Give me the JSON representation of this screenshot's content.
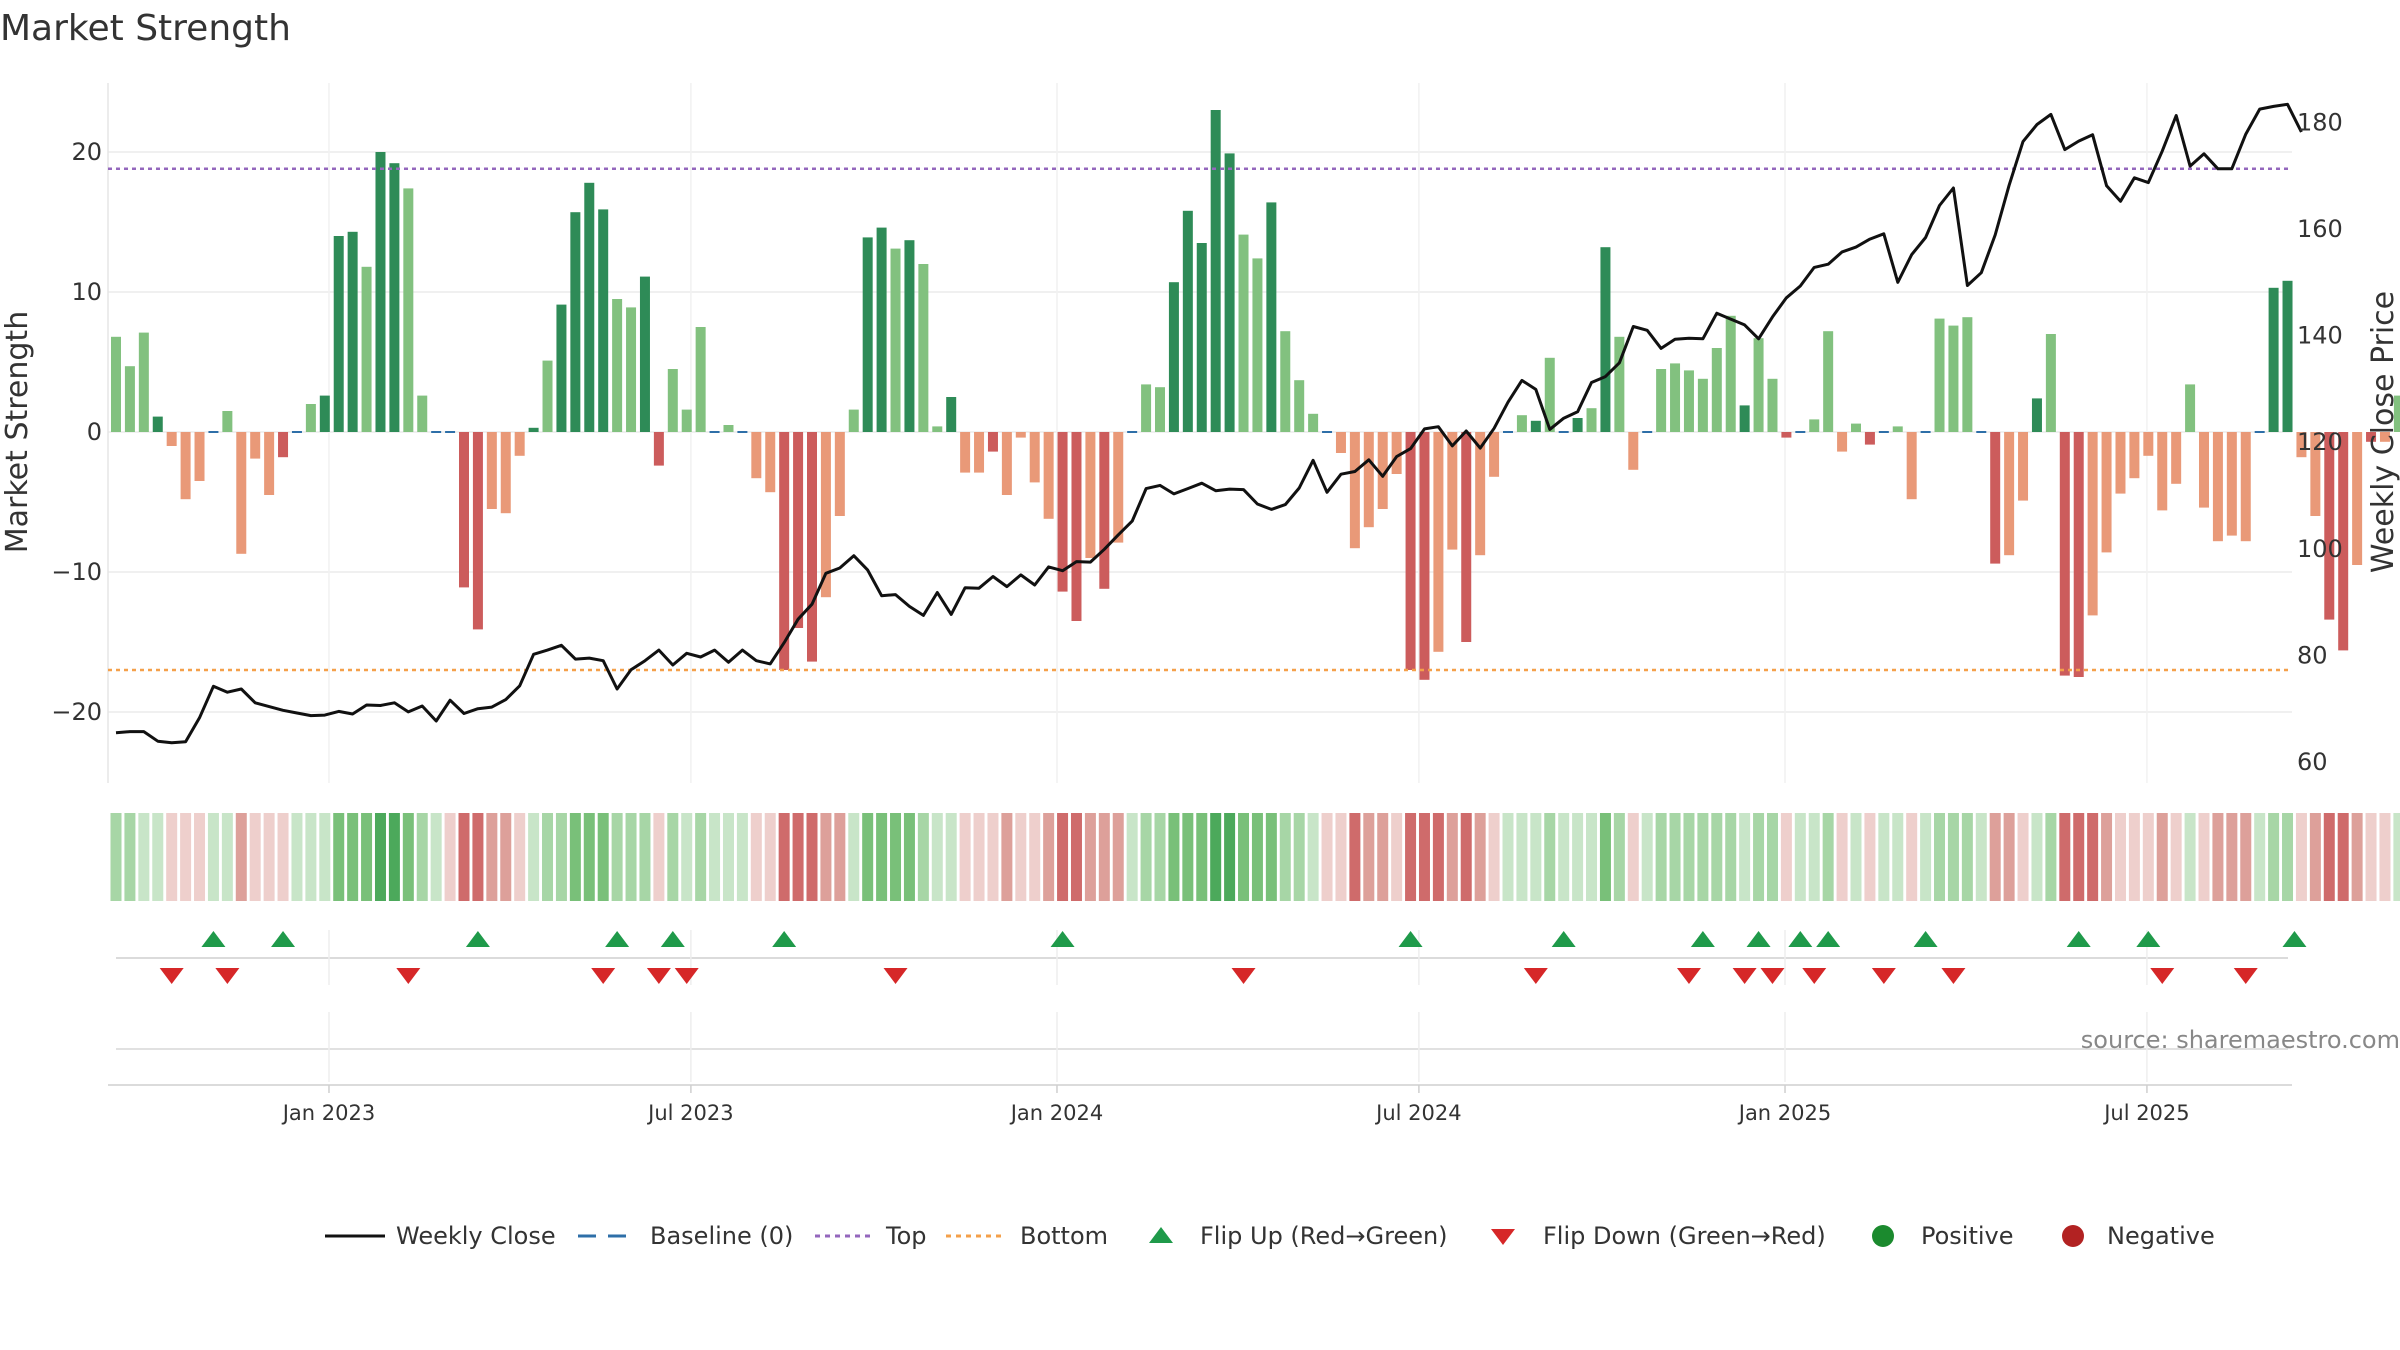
{
  "chart_data": {
    "type": "bar",
    "title": "Market Strength",
    "ylabel": "Market Strength",
    "y2label": "Weekly Close Price",
    "ylim": [
      -25,
      25
    ],
    "y2lim": [
      55,
      190
    ],
    "y_ticks": [
      "20",
      "10",
      "0",
      "−10",
      "−20"
    ],
    "y_tick_values": [
      20,
      10,
      0,
      -10,
      -20
    ],
    "y2_ticks": [
      "180",
      "160",
      "140",
      "120",
      "100",
      "80",
      "60"
    ],
    "y2_tick_values": [
      180,
      160,
      140,
      120,
      100,
      80,
      60
    ],
    "x_ticks": [
      "Jan 2023",
      "Jul 2023",
      "Jan 2024",
      "Jul 2024",
      "Jan 2025",
      "Jul 2025"
    ],
    "x_tick_weeks": [
      15.3,
      41.3,
      67.6,
      93.6,
      119.9,
      145.9
    ],
    "top_level": 18.8,
    "bottom_level": -17.0,
    "strength": [
      6.8,
      4.7,
      7.1,
      1.1,
      -1.0,
      -4.8,
      -3.5,
      0,
      1.5,
      -8.7,
      -1.9,
      -4.5,
      -1.8,
      0,
      2.0,
      2.6,
      14.0,
      14.3,
      11.8,
      20.0,
      19.2,
      17.4,
      2.6,
      0,
      0,
      -11.1,
      -14.1,
      -5.5,
      -5.8,
      -1.7,
      0.3,
      5.1,
      9.1,
      15.7,
      17.8,
      15.9,
      9.5,
      8.9,
      11.1,
      -2.4,
      4.5,
      1.6,
      7.5,
      0,
      0.5,
      0,
      -3.3,
      -4.3,
      -17.0,
      -14.0,
      -16.4,
      -11.8,
      -6.0,
      1.6,
      13.9,
      14.6,
      13.1,
      13.7,
      12.0,
      0.4,
      2.5,
      -2.9,
      -2.9,
      -1.4,
      -4.5,
      -0.4,
      -3.6,
      -6.2,
      -11.4,
      -13.5,
      -9.0,
      -11.2,
      -7.9,
      0,
      3.4,
      3.2,
      10.7,
      15.8,
      13.5,
      23.0,
      19.9,
      14.1,
      12.4,
      16.4,
      7.2,
      3.7,
      1.3,
      0,
      -1.5,
      -8.3,
      -6.8,
      -5.5,
      -3.0,
      -17.0,
      -17.7,
      -15.7,
      -8.4,
      -15.0,
      -8.8,
      -3.2,
      0,
      1.2,
      0.8,
      5.3,
      0,
      1.0,
      1.7,
      13.2,
      6.8,
      -2.7,
      0,
      4.5,
      4.9,
      4.4,
      3.8,
      6.0,
      8.3,
      1.9,
      6.7,
      3.8,
      -0.4,
      0,
      0.9,
      7.2,
      -1.4,
      0.6,
      -0.9,
      0,
      0.4,
      -4.8,
      0,
      8.1,
      7.6,
      8.2,
      0,
      -9.4,
      -8.8,
      -4.9,
      2.4,
      7.0,
      -17.4,
      -17.5,
      -13.1,
      -8.6,
      -4.4,
      -3.3,
      -1.7,
      -5.6,
      -3.7,
      3.4,
      -5.4,
      -7.8,
      -7.4,
      -7.8,
      0,
      10.3,
      10.8,
      -1.8,
      -6.0,
      -13.4,
      -15.6,
      -9.5,
      -0.7,
      -0.7,
      2.6
    ],
    "price": [
      65.5,
      65.7,
      65.7,
      63.9,
      63.6,
      63.8,
      68.3,
      74.2,
      73.1,
      73.7,
      71.1,
      70.4,
      69.7,
      69.2,
      68.7,
      68.8,
      69.5,
      69.0,
      70.7,
      70.6,
      71.1,
      69.4,
      70.5,
      67.7,
      71.6,
      69.1,
      70.0,
      70.3,
      71.7,
      74.3,
      80.2,
      81.0,
      81.9,
      79.3,
      79.5,
      79.0,
      73.7,
      77.3,
      79.0,
      81.0,
      78.2,
      80.4,
      79.7,
      81.0,
      78.7,
      81.0,
      79.0,
      78.4,
      82.4,
      86.8,
      89.6,
      95.4,
      96.4,
      98.7,
      96.0,
      91.2,
      91.4,
      89.2,
      87.5,
      91.8,
      87.7,
      92.7,
      92.6,
      94.8,
      92.9,
      95.1,
      93.2,
      96.6,
      95.9,
      97.6,
      97.5,
      99.9,
      102.6,
      105.2,
      111.3,
      111.9,
      110.3,
      111.3,
      112.3,
      110.9,
      111.2,
      111.1,
      108.4,
      107.4,
      108.3,
      111.4,
      116.6,
      110.6,
      114.0,
      114.5,
      116.7,
      113.6,
      117.3,
      118.8,
      122.5,
      122.9,
      119.3,
      122.1,
      118.9,
      122.6,
      127.5,
      131.6,
      129.9,
      122.4,
      124.5,
      125.7,
      131.2,
      132.3,
      134.9,
      141.7,
      141.0,
      137.6,
      139.3,
      139.5,
      139.4,
      144.2,
      143.1,
      142.0,
      139.4,
      143.5,
      147.1,
      149.3,
      152.8,
      153.4,
      155.7,
      156.6,
      158.1,
      159.1,
      150.0,
      155.2,
      158.4,
      164.4,
      167.7,
      149.4,
      151.8,
      158.9,
      168.2,
      176.4,
      179.6,
      181.5,
      174.9,
      176.5,
      177.7,
      168.1,
      165.2,
      169.6,
      168.7,
      174.6,
      181.3,
      171.8,
      174.1,
      171.3,
      171.3,
      177.8,
      182.5,
      183.0,
      183.4,
      178.2
    ],
    "heat_levels": [
      2,
      2,
      1,
      1,
      -1,
      -1,
      -1,
      1,
      1,
      -2,
      -1,
      -1,
      -1,
      1,
      1,
      1,
      3,
      3,
      3,
      4,
      4,
      3,
      2,
      1,
      -1,
      -3,
      -3,
      -2,
      -2,
      -1,
      1,
      2,
      2,
      3,
      3,
      3,
      2,
      2,
      2,
      -1,
      2,
      1,
      2,
      1,
      1,
      1,
      -1,
      -1,
      -3,
      -3,
      -3,
      -2,
      -2,
      1,
      3,
      3,
      3,
      3,
      2,
      1,
      1,
      -1,
      -1,
      -1,
      -2,
      -1,
      -1,
      -2,
      -3,
      -3,
      -2,
      -2,
      -2,
      1,
      2,
      2,
      3,
      3,
      3,
      4,
      4,
      3,
      3,
      3,
      2,
      2,
      1,
      -1,
      -1,
      -3,
      -2,
      -2,
      -1,
      -3,
      -3,
      -3,
      -2,
      -3,
      -2,
      -1,
      1,
      1,
      1,
      2,
      1,
      1,
      1,
      3,
      2,
      -1,
      1,
      2,
      2,
      2,
      2,
      2,
      2,
      1,
      2,
      2,
      -1,
      1,
      1,
      2,
      -1,
      1,
      -1,
      1,
      1,
      -1,
      1,
      2,
      2,
      2,
      1,
      -2,
      -2,
      -1,
      1,
      2,
      -3,
      -3,
      -3,
      -2,
      -1,
      -1,
      -1,
      -2,
      -1,
      1,
      -1,
      -2,
      -2,
      -2,
      1,
      2,
      2,
      -1,
      -2,
      -3,
      -3,
      -2,
      -1,
      -1,
      1
    ],
    "flip_up_weeks": [
      7,
      12,
      26,
      36,
      40,
      48,
      68,
      93,
      104,
      114,
      118,
      121,
      123,
      130,
      141,
      146,
      156.5
    ],
    "flip_down_weeks": [
      4,
      8,
      21,
      35,
      39,
      41,
      56,
      81,
      102,
      113,
      117,
      119,
      122,
      127,
      132,
      147,
      153
    ],
    "legend": [
      "Weekly Close",
      "Baseline (0)",
      "Top",
      "Bottom",
      "Flip Up (Red→Green)",
      "Flip Down (Green→Red)",
      "Positive",
      "Negative"
    ],
    "legend_placement": "bottom",
    "grid": true
  },
  "source": "source: sharemaestro.com",
  "colors": {
    "strong_green": "#2e8b57",
    "light_green": "#82c17f",
    "strong_red": "#cc5c5c",
    "light_red": "#e99978",
    "top_line": "#9467bd",
    "bottom_line": "#f4a04a",
    "baseline": "#2e6fa8",
    "price_line": "#111111",
    "flip_up": "#1f9a4a",
    "flip_down": "#d62728",
    "positive_dot": "#1b8a2e",
    "negative_dot": "#b22222"
  }
}
